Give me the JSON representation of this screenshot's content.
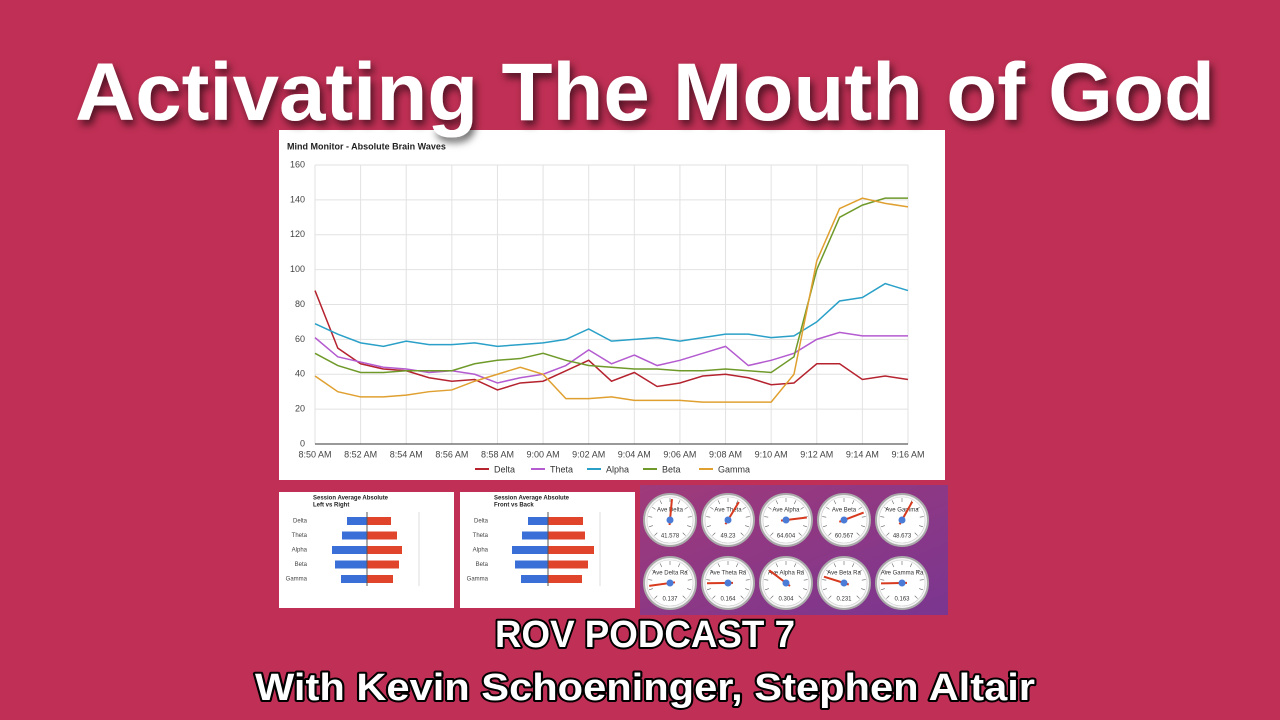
{
  "header": {
    "title": "Activating The Mouth of God"
  },
  "chart_data": [
    {
      "type": "line",
      "title": "Mind Monitor - Absolute Brain Waves",
      "categories": [
        "8:50 AM",
        null,
        "8:52 AM",
        null,
        "8:54 AM",
        null,
        "8:56 AM",
        null,
        "8:58 AM",
        null,
        "9:00 AM",
        null,
        "9:02 AM",
        null,
        "9:04 AM",
        null,
        "9:06 AM",
        null,
        "9:08 AM",
        null,
        "9:10 AM",
        null,
        "9:12 AM",
        null,
        "9:14 AM",
        null,
        "9:16 AM"
      ],
      "series": [
        {
          "name": "Delta",
          "color": "#b5232f",
          "values": [
            88,
            55,
            46,
            43,
            42,
            38,
            36,
            37,
            31,
            35,
            36,
            42,
            48,
            36,
            41,
            33,
            35,
            39,
            40,
            38,
            34,
            35,
            46,
            46,
            37,
            39,
            37
          ]
        },
        {
          "name": "Theta",
          "color": "#b45bd0",
          "values": [
            61,
            50,
            47,
            44,
            43,
            41,
            42,
            40,
            35,
            38,
            40,
            45,
            54,
            46,
            51,
            45,
            48,
            52,
            56,
            45,
            48,
            52,
            60,
            64,
            62,
            62,
            62
          ]
        },
        {
          "name": "Alpha",
          "color": "#2aa0c8",
          "values": [
            69,
            63,
            58,
            56,
            59,
            57,
            57,
            58,
            56,
            57,
            58,
            60,
            66,
            59,
            60,
            61,
            59,
            61,
            63,
            63,
            61,
            62,
            70,
            82,
            84,
            92,
            88
          ]
        },
        {
          "name": "Beta",
          "color": "#6f9a2a",
          "values": [
            52,
            45,
            41,
            41,
            42,
            42,
            42,
            46,
            48,
            49,
            52,
            48,
            45,
            44,
            43,
            43,
            42,
            42,
            43,
            42,
            41,
            50,
            100,
            130,
            137,
            141,
            141
          ]
        },
        {
          "name": "Gamma",
          "color": "#e0a030",
          "values": [
            39,
            30,
            27,
            27,
            28,
            30,
            31,
            36,
            40,
            44,
            40,
            26,
            26,
            27,
            25,
            25,
            25,
            24,
            24,
            24,
            24,
            40,
            105,
            135,
            141,
            138,
            136
          ]
        }
      ],
      "ylim": [
        0,
        160
      ],
      "yticks": [
        0,
        20,
        40,
        60,
        80,
        100,
        120,
        140,
        160
      ],
      "grid": true,
      "legend": "bottom"
    },
    {
      "type": "bar",
      "orientation": "horizontal",
      "title": "Session Average Absolute",
      "subtitle": "Left vs Right",
      "categories": [
        "Delta",
        "Theta",
        "Alpha",
        "Beta",
        "Gamma"
      ],
      "series": [
        {
          "color": "#3a6fd8",
          "values": [
            -20,
            -25,
            -35,
            -32,
            -26
          ]
        },
        {
          "color": "#e0452c",
          "values": [
            24,
            30,
            35,
            32,
            26
          ]
        }
      ],
      "xlim": [
        -45,
        45
      ]
    },
    {
      "type": "bar",
      "orientation": "horizontal",
      "title": "Session Average Absolute",
      "subtitle": "Front vs Back",
      "categories": [
        "Delta",
        "Theta",
        "Alpha",
        "Beta",
        "Gamma"
      ],
      "series": [
        {
          "color": "#3a6fd8",
          "values": [
            -20,
            -26,
            -36,
            -33,
            -27
          ]
        },
        {
          "color": "#e0452c",
          "values": [
            35,
            37,
            46,
            40,
            34
          ]
        }
      ],
      "xlim": [
        -45,
        45
      ]
    },
    {
      "type": "gauge",
      "lim": [
        0,
        80
      ],
      "gauges": [
        {
          "label": "Ave Delta",
          "value": 41.578
        },
        {
          "label": "Ave Theta",
          "value": 49.23
        },
        {
          "label": "Ave Alpha",
          "value": 64.604
        },
        {
          "label": "Ave Beta",
          "value": 60.567
        },
        {
          "label": "Ave Gamma",
          "value": 48.673
        }
      ]
    },
    {
      "type": "gauge",
      "lim": [
        0,
        1
      ],
      "gauges": [
        {
          "label": "Ave Delta Ra",
          "value": 0.137
        },
        {
          "label": "Ave Theta Ra",
          "value": 0.164
        },
        {
          "label": "Ave Alpha Ra",
          "value": 0.304
        },
        {
          "label": "Ave Beta Ra",
          "value": 0.231
        },
        {
          "label": "Ave Gamma Ra",
          "value": 0.163
        }
      ]
    }
  ],
  "footer": {
    "line1": "ROV PODCAST 7",
    "line2": "With Kevin Schoeninger, Stephen Altair"
  }
}
